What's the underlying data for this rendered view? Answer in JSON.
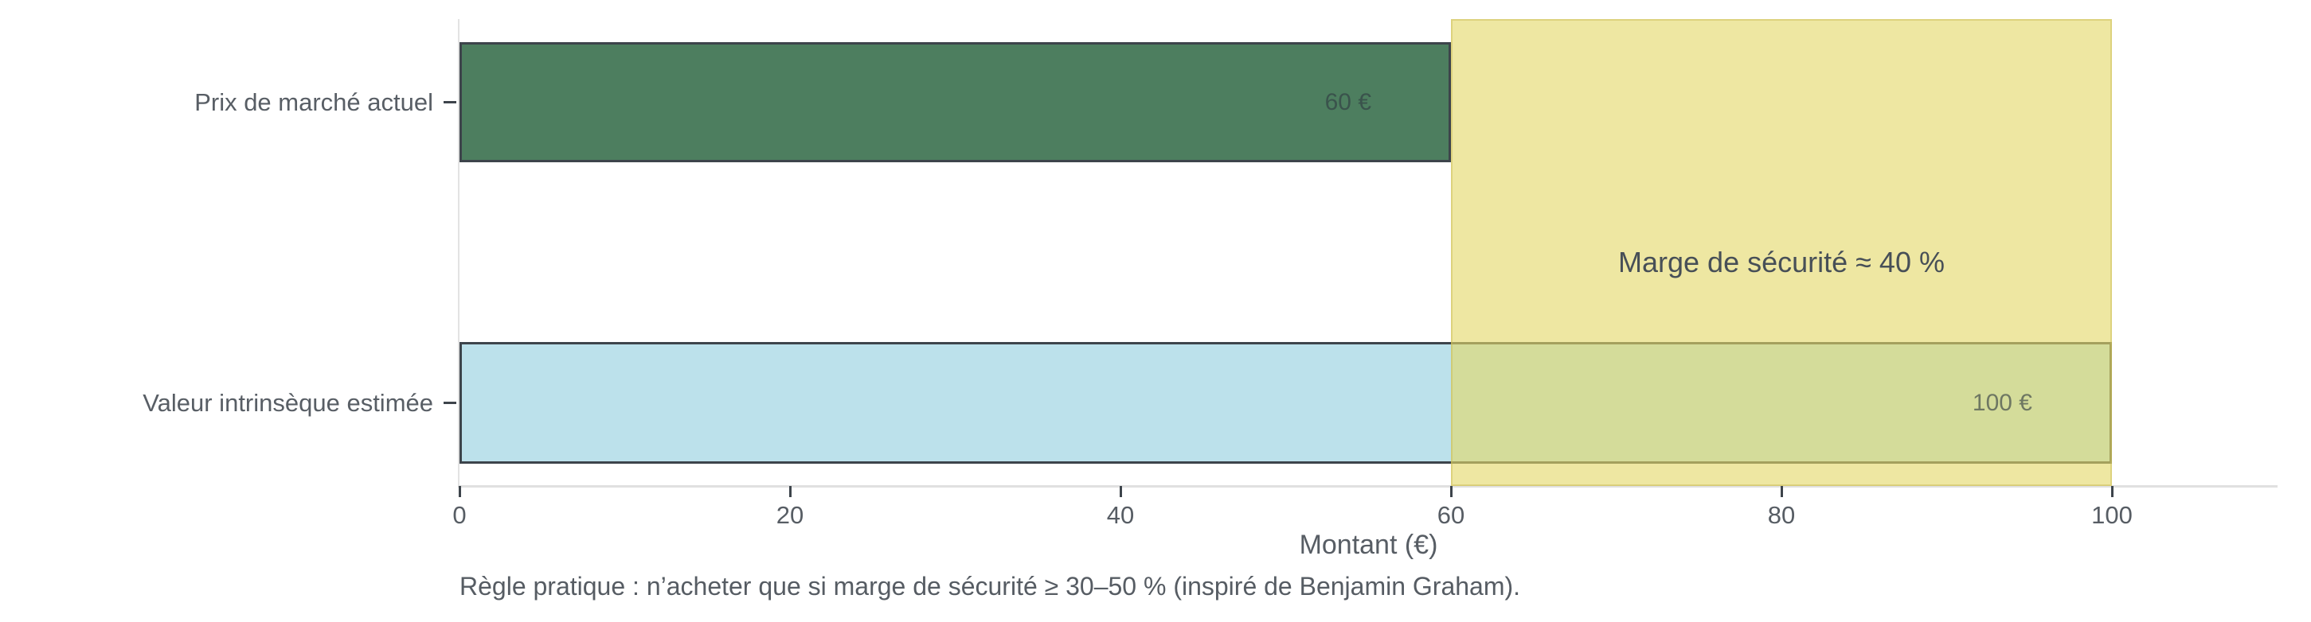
{
  "chart_data": {
    "type": "bar",
    "orientation": "horizontal",
    "title": "",
    "categories": [
      "Prix de marché actuel",
      "Valeur intrinsèque estimée"
    ],
    "values": [
      60,
      100
    ],
    "value_labels": [
      "60 €",
      "100 €"
    ],
    "bar_colors": [
      "#4d7e5f",
      "#bce1eb"
    ],
    "bar_edge_color": "#3d444b",
    "xlabel": "Montant (€)",
    "ylabel": "",
    "xlim": [
      0,
      100
    ],
    "x_ticks": [
      0,
      20,
      40,
      60,
      80,
      100
    ],
    "x_tick_labels": [
      "0",
      "20",
      "40",
      "60",
      "80",
      "100"
    ],
    "grid": false,
    "legend": false,
    "highlight_band": {
      "from": 60,
      "to": 100,
      "color": "rgba(228,216,105,0.62)",
      "label": "Marge de sécurité ≈ 40 %"
    },
    "caption": "Règle pratique : n’acheter que si marge de sécurité ≥ 30–50 % (inspiré de Benjamin Graham)."
  }
}
